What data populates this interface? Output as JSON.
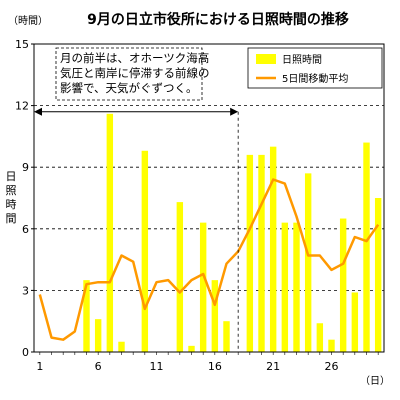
{
  "chart_data": {
    "type": "bar",
    "title": "9月の日立市役所における日照時間の推移",
    "y_unit": "（時間）",
    "x_unit": "（日）",
    "ylabel": "日照時間",
    "xlabel": "",
    "ylim": [
      0,
      15
    ],
    "xlim": [
      1,
      30
    ],
    "y_ticks": [
      0,
      3,
      6,
      9,
      12,
      15
    ],
    "x_ticks": [
      1,
      6,
      11,
      16,
      21,
      26
    ],
    "grid": "horizontal-dashed",
    "legend_position": "top-right",
    "x": [
      1,
      2,
      3,
      4,
      5,
      6,
      7,
      8,
      9,
      10,
      11,
      12,
      13,
      14,
      15,
      16,
      17,
      18,
      19,
      20,
      21,
      22,
      23,
      24,
      25,
      26,
      27,
      28,
      29,
      30
    ],
    "series": [
      {
        "name": "日照時間",
        "type": "bar",
        "color": "#ffff00",
        "values": [
          0,
          0,
          0,
          0,
          3.5,
          1.6,
          11.6,
          0.5,
          0,
          9.8,
          0,
          0,
          7.3,
          0.3,
          6.3,
          3.5,
          1.5,
          0,
          9.6,
          9.6,
          10.0,
          6.3,
          6.3,
          8.7,
          1.4,
          0.6,
          6.5,
          2.9,
          10.2,
          7.5
        ]
      },
      {
        "name": "5日間移動平均",
        "type": "line",
        "color": "#ff9900",
        "values": [
          2.8,
          0.7,
          0.6,
          1.0,
          3.3,
          3.4,
          3.4,
          4.7,
          4.4,
          2.1,
          3.4,
          3.5,
          2.9,
          3.5,
          3.8,
          2.3,
          4.3,
          4.9,
          6.0,
          7.2,
          8.4,
          8.2,
          6.6,
          4.7,
          4.7,
          4.0,
          4.3,
          5.6,
          5.4,
          6.2
        ]
      }
    ],
    "annotation": {
      "lines": [
        "月の前半は、オホーツク海高",
        "気圧と南岸に停滞する前線の",
        "影響で、天気がぐずつく。"
      ],
      "arrow_from_x": 1,
      "arrow_to_x": 18,
      "arrow_y": 11.7
    }
  }
}
